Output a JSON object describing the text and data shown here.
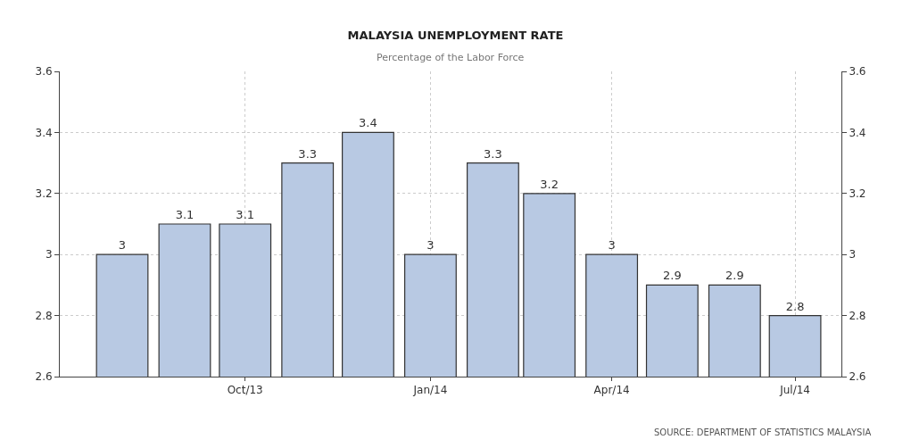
{
  "chart_data": {
    "type": "bar",
    "title": "MALAYSIA UNEMPLOYMENT RATE",
    "subtitle": "Percentage of the Labor Force",
    "x": [
      "2013-08",
      "2013-09",
      "2013-10",
      "2013-11",
      "2013-12",
      "2014-01",
      "2014-02",
      "2014-03",
      "2014-04",
      "2014-05",
      "2014-06",
      "2014-07"
    ],
    "values": [
      3,
      3.1,
      3.1,
      3.3,
      3.4,
      3,
      3.3,
      3.2,
      3,
      2.9,
      2.9,
      2.8
    ],
    "color": "#b8c9e3",
    "data_labels": true,
    "xlim": [
      "2013-07-01",
      "2014-07-24"
    ],
    "xticks": [
      {
        "value": "2013-10",
        "label": "Oct/13"
      },
      {
        "value": "2014-01",
        "label": "Jan/14"
      },
      {
        "value": "2014-04",
        "label": "Apr/14"
      },
      {
        "value": "2014-07",
        "label": "Jul/14"
      }
    ],
    "ylim": [
      2.6,
      3.6
    ],
    "yticks": [
      2.6,
      2.8,
      3,
      3.2,
      3.4,
      3.6
    ],
    "y2lim": [
      2.6,
      3.6
    ],
    "y2ticks": [
      2.6,
      2.8,
      3,
      3.2,
      3.4,
      3.6
    ],
    "grid": true,
    "annotations": [
      "SOURCE: DEPARTMENT OF STATISTICS MALAYSIA"
    ]
  }
}
